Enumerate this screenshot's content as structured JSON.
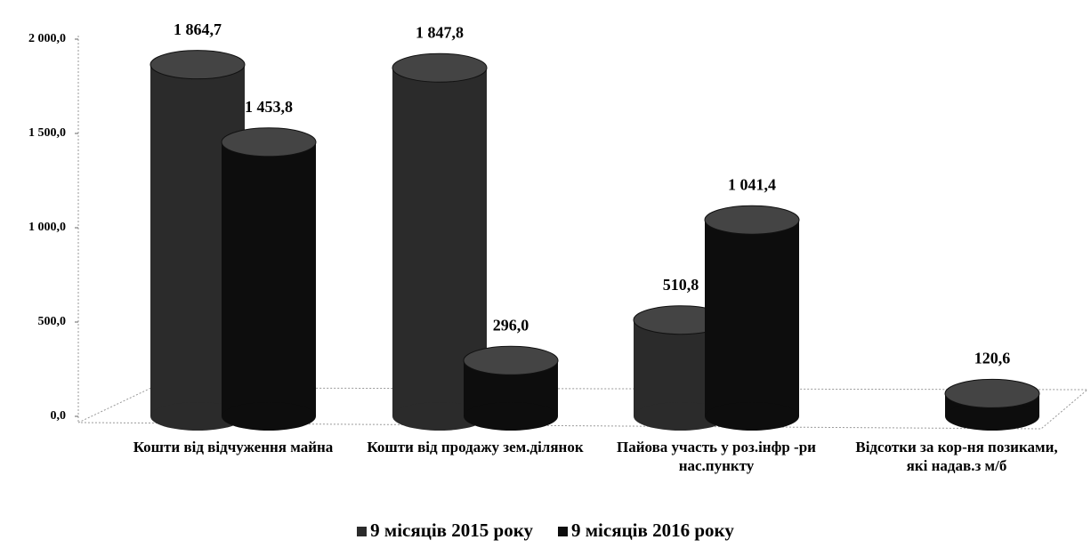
{
  "chart_data": {
    "type": "bar3d",
    "categories": [
      "Кошти від відчуження майна",
      "Кошти від продажу зем.ділянок",
      "Пайова участь у роз.інфр -ри нас.пункту",
      "Відсотки за кор-ня позиками, які надав.з м/б"
    ],
    "series": [
      {
        "name": "9 місяців 2015 року",
        "color": "#2b2b2b",
        "values": [
          1864.7,
          1847.8,
          510.8,
          null
        ],
        "value_labels": [
          "1 864,7",
          "1 847,8",
          "510,8",
          null
        ]
      },
      {
        "name": "9 місяців 2016 року",
        "color": "#0d0d0d",
        "values": [
          1453.8,
          296.0,
          1041.4,
          120.6
        ],
        "value_labels": [
          "1 453,8",
          "296,0",
          "1 041,4",
          "120,6"
        ]
      }
    ],
    "ylim": [
      0,
      2000
    ],
    "yticks": [
      {
        "value": 0,
        "label": "0,0"
      },
      {
        "value": 500,
        "label": "500,0"
      },
      {
        "value": 1000,
        "label": "1 000,0"
      },
      {
        "value": 1500,
        "label": "1 500,0"
      },
      {
        "value": 2000,
        "label": "2 000,0"
      }
    ]
  }
}
